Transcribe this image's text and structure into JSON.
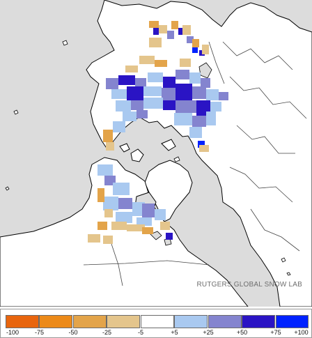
{
  "map": {
    "credit": "RUTGERS GLOBAL SNOW LAB",
    "colors": {
      "ocean": "#dcdcdc",
      "land": "#ffffff",
      "coastline": "#000000",
      "border": "#555555"
    }
  },
  "legend": {
    "ticks": [
      "-100",
      "-75",
      "-50",
      "-25",
      "-5",
      "+5",
      "+25",
      "+50",
      "+75",
      "+100"
    ],
    "bins": [
      {
        "range": "-100 to -75",
        "color": "#e8650e"
      },
      {
        "range": "-75 to -50",
        "color": "#ec8a19"
      },
      {
        "range": "-50 to -25",
        "color": "#e3a44a"
      },
      {
        "range": "-25 to -5",
        "color": "#e4c58c"
      },
      {
        "range": "-5 to +5",
        "color": "#ffffff"
      },
      {
        "range": "+5 to +25",
        "color": "#a9c9f0"
      },
      {
        "range": "+25 to +50",
        "color": "#8484cf"
      },
      {
        "range": "+50 to +75",
        "color": "#2a14c4"
      },
      {
        "range": "+75 to +100",
        "color": "#0022ff"
      }
    ]
  }
}
